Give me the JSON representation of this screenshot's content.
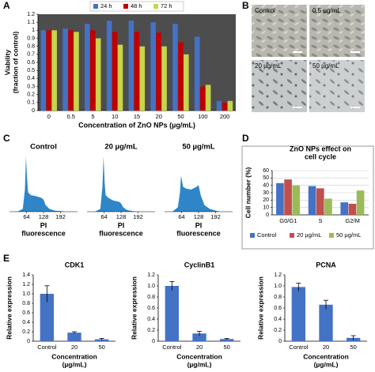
{
  "panel_labels": [
    "A",
    "B",
    "C",
    "D",
    "E"
  ],
  "micrographs": [
    "Control",
    "0.5 µg/mL",
    "20 µg/mL",
    "50 µg/mL"
  ],
  "chart_data": [
    {
      "type": "bar",
      "ylabel": [
        "Viability",
        "(fraction of control)"
      ],
      "xlabel": "Concentration of ZnO NPs (µg/mL)",
      "categories": [
        "0",
        "0.5",
        "5",
        "10",
        "15",
        "20",
        "50",
        "100",
        "200"
      ],
      "series": [
        {
          "name": "24 h",
          "color": "#4472c4",
          "values": [
            1.0,
            1.02,
            1.08,
            1.12,
            1.12,
            1.1,
            1.08,
            0.92,
            0.12
          ]
        },
        {
          "name": "48 h",
          "color": "#c00000",
          "values": [
            1.0,
            1.0,
            1.0,
            0.98,
            0.98,
            0.97,
            0.85,
            0.3,
            0.1
          ]
        },
        {
          "name": "72 h",
          "color": "#c8d44a",
          "values": [
            1.0,
            0.98,
            0.9,
            0.82,
            0.8,
            0.8,
            0.7,
            0.32,
            0.12
          ]
        }
      ],
      "ylim": [
        0,
        1.2
      ],
      "yticks": [
        0,
        0.1,
        0.2,
        0.3,
        0.4,
        0.5,
        0.6,
        0.7,
        0.8,
        0.9,
        1,
        1.1,
        1.2
      ],
      "grid": false,
      "plot_background": "#4d4d4d",
      "legend": "top"
    },
    {
      "type": "bar",
      "title": [
        "ZnO NPs effect on",
        "cell cycle"
      ],
      "ylabel": [
        "Cell number (%)"
      ],
      "categories": [
        "G0/G1",
        "S",
        "G2/M"
      ],
      "series": [
        {
          "name": "Control",
          "color": "#4472c4",
          "values": [
            43,
            39,
            17
          ]
        },
        {
          "name": "20 µg/mL",
          "color": "#c0504d",
          "values": [
            48,
            36,
            15
          ]
        },
        {
          "name": "50 µg/mL",
          "color": "#9bbb59",
          "values": [
            40,
            22,
            33
          ]
        }
      ],
      "ylim": [
        0,
        60
      ],
      "yticks": [
        0,
        10,
        20,
        30,
        40,
        50,
        60
      ],
      "grid": true,
      "legend": "bottom"
    },
    {
      "type": "bar",
      "title": [
        "CDK1"
      ],
      "ylabel": [
        "Relative expression"
      ],
      "xlabel": [
        "Concentration",
        "(µg/mL)"
      ],
      "categories": [
        "Control",
        "20",
        "50"
      ],
      "values": [
        1.0,
        0.18,
        0.04
      ],
      "errors": [
        0.17,
        0.02,
        0.02
      ],
      "color": "#4472c4",
      "ylim": [
        0,
        1.4
      ],
      "yticks": [
        0,
        0.2,
        0.4,
        0.6,
        0.8,
        {
          "value": 1,
          "label": "1.0"
        },
        1.2,
        1.4
      ],
      "grid": false
    },
    {
      "type": "bar",
      "title": [
        "CyclinB1"
      ],
      "ylabel": [
        "Relative expression"
      ],
      "xlabel": [
        "Concentration",
        "(µg/mL)"
      ],
      "categories": [
        "Control",
        "20",
        "50"
      ],
      "values": [
        1.0,
        0.14,
        0.04
      ],
      "errors": [
        0.08,
        0.04,
        0.01
      ],
      "color": "#4472c4",
      "ylim": [
        0,
        1.2
      ],
      "yticks": [
        0,
        0.2,
        0.4,
        0.6,
        0.8,
        {
          "value": 1,
          "label": "1.0"
        },
        1.2
      ],
      "grid": false
    },
    {
      "type": "bar",
      "title": [
        "PCNA"
      ],
      "ylabel": [
        "Relative expression"
      ],
      "xlabel": [
        "Concentration",
        "(µg/mL)"
      ],
      "categories": [
        "Control",
        "20",
        "50"
      ],
      "values": [
        0.98,
        0.66,
        0.06
      ],
      "errors": [
        0.07,
        0.08,
        0.04
      ],
      "color": "#4472c4",
      "ylim": [
        0,
        1.2
      ],
      "yticks": [
        0,
        0.2,
        0.4,
        0.6,
        0.8,
        {
          "value": 1,
          "label": "1.0"
        },
        1.2
      ],
      "grid": false
    },
    {
      "type": "area",
      "xlabel": [
        "PI",
        "fluorescence"
      ],
      "color": "#2e86c8",
      "x": [
        30,
        50,
        58,
        62,
        66,
        70,
        80,
        100,
        120,
        128,
        136,
        150,
        170,
        192,
        210
      ],
      "series": [
        {
          "name": "Control",
          "values": [
            0,
            5,
            40,
            100,
            60,
            35,
            30,
            28,
            25,
            22,
            12,
            5,
            2,
            1,
            0
          ]
        },
        {
          "name": "20 µg/mL",
          "values": [
            0,
            5,
            45,
            100,
            55,
            30,
            25,
            20,
            18,
            15,
            8,
            3,
            1,
            0,
            0
          ]
        },
        {
          "name": "50 µg/mL",
          "values": [
            0,
            8,
            35,
            65,
            55,
            45,
            42,
            40,
            45,
            48,
            30,
            12,
            5,
            2,
            0
          ]
        }
      ],
      "xlim": [
        0,
        256
      ],
      "xticks": [
        64,
        128,
        192
      ]
    }
  ]
}
